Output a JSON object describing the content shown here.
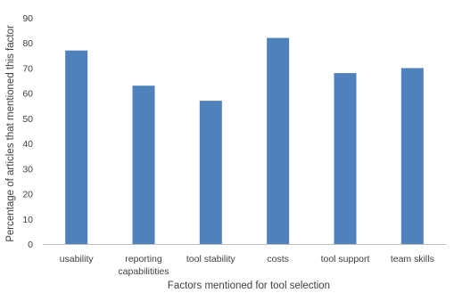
{
  "chart_data": {
    "type": "bar",
    "categories": [
      [
        "usability"
      ],
      [
        "reporting",
        "capabilitities"
      ],
      [
        "tool stability"
      ],
      [
        "costs"
      ],
      [
        "tool support"
      ],
      [
        "team skills"
      ]
    ],
    "values": [
      77,
      63,
      57,
      82,
      68,
      70
    ],
    "xlabel": "Factors mentioned for tool selection",
    "ylabel": "Percentage of articles that mentioned this factor",
    "ylim": [
      0,
      90
    ],
    "yticks": [
      0,
      10,
      20,
      30,
      40,
      50,
      60,
      70,
      80,
      90
    ],
    "grid": false,
    "legend": "none",
    "bar_color": "#4F81BD",
    "axis_color": "#BFBFBF",
    "text_color": "#404040"
  }
}
